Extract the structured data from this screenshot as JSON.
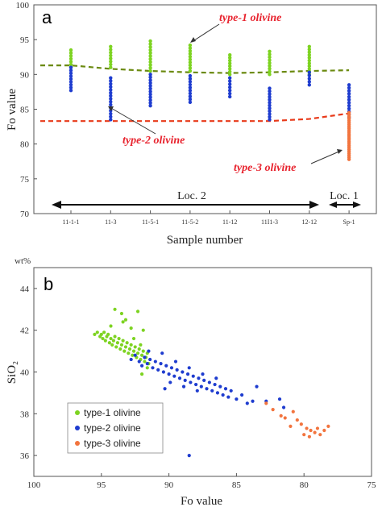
{
  "colors": {
    "type1": "#7dd321",
    "type2": "#1e3ccf",
    "type3": "#f2743e",
    "greenLine": "#6b8a10",
    "redLine": "#e83a1a",
    "annoRed": "#e8232e"
  },
  "chart_data": [
    {
      "type": "scatter",
      "panel_label": "a",
      "xlabel": "Sample number",
      "ylabel": "Fo value",
      "ylim": [
        70,
        100
      ],
      "yticks": [
        70,
        75,
        80,
        85,
        90,
        95,
        100
      ],
      "categories": [
        "11-1-1",
        "11-3",
        "11-5-1",
        "11-5-2",
        "11-12",
        "11I1-3",
        "12-12",
        "Sp-1"
      ],
      "series": [
        {
          "name": "type-1 olivine",
          "ranges": [
            [
              91.0,
              93.5
            ],
            [
              91.0,
              94.0
            ],
            [
              90.5,
              94.8
            ],
            [
              90.5,
              94.2
            ],
            [
              90.0,
              92.8
            ],
            [
              90.0,
              93.3
            ],
            [
              90.0,
              94.0
            ],
            []
          ]
        },
        {
          "name": "type-2 olivine",
          "ranges": [
            [
              87.7,
              91.0
            ],
            [
              83.5,
              89.5
            ],
            [
              85.5,
              90.0
            ],
            [
              86.0,
              89.8
            ],
            [
              86.8,
              89.5
            ],
            [
              83.5,
              88.0
            ],
            [
              88.5,
              90.3
            ],
            [
              83.8,
              88.5
            ]
          ]
        },
        {
          "name": "type-3 olivine",
          "ranges": [
            [],
            [],
            [],
            [],
            [],
            [],
            [],
            [
              77.8,
              84.5
            ]
          ]
        }
      ],
      "dashed_lines": [
        {
          "name": "type-1 / type-2 boundary",
          "x": [
            0,
            1,
            2,
            3,
            4,
            5,
            6,
            7
          ],
          "y": [
            91.3,
            90.8,
            90.5,
            90.3,
            90.2,
            90.3,
            90.5,
            90.6
          ]
        },
        {
          "name": "type-2 / type-3 boundary",
          "x": [
            0,
            1,
            2,
            3,
            4,
            5,
            6,
            7
          ],
          "y": [
            83.3,
            83.3,
            83.3,
            83.3,
            83.3,
            83.3,
            83.6,
            84.4
          ]
        }
      ],
      "annotations": [
        "type-1 olivine",
        "type-2 olivine",
        "type-3 olivine"
      ],
      "locations": [
        "Loc. 2",
        "Loc. 1"
      ]
    },
    {
      "type": "scatter",
      "panel_label": "b",
      "xlabel": "Fo value",
      "ylabel": "SiO₂",
      "unit_label": "wt%",
      "xlim": [
        100,
        75
      ],
      "ylim": [
        35,
        45
      ],
      "xticks": [
        100,
        95,
        90,
        85,
        80,
        75
      ],
      "yticks": [
        36,
        38,
        40,
        42,
        44
      ],
      "legend_position": "bottom-left",
      "series": [
        {
          "name": "type-1 olivine",
          "points": [
            [
              95.5,
              41.8
            ],
            [
              95.3,
              41.9
            ],
            [
              95.1,
              41.7
            ],
            [
              95.0,
              41.8
            ],
            [
              94.9,
              41.6
            ],
            [
              94.8,
              41.9
            ],
            [
              94.7,
              41.5
            ],
            [
              94.6,
              41.7
            ],
            [
              94.5,
              41.8
            ],
            [
              94.4,
              41.4
            ],
            [
              94.3,
              41.6
            ],
            [
              94.2,
              41.3
            ],
            [
              94.1,
              41.5
            ],
            [
              94.0,
              41.7
            ],
            [
              93.9,
              41.2
            ],
            [
              93.8,
              41.4
            ],
            [
              93.7,
              41.6
            ],
            [
              93.6,
              41.1
            ],
            [
              93.5,
              41.3
            ],
            [
              93.4,
              41.5
            ],
            [
              93.3,
              41.0
            ],
            [
              93.2,
              41.2
            ],
            [
              93.1,
              41.4
            ],
            [
              93.0,
              40.9
            ],
            [
              92.9,
              41.1
            ],
            [
              92.8,
              41.3
            ],
            [
              92.7,
              40.8
            ],
            [
              92.6,
              41.0
            ],
            [
              92.5,
              41.2
            ],
            [
              92.4,
              40.7
            ],
            [
              92.3,
              40.9
            ],
            [
              92.2,
              41.1
            ],
            [
              92.1,
              40.6
            ],
            [
              92.0,
              40.8
            ],
            [
              91.9,
              41.0
            ],
            [
              91.8,
              40.5
            ],
            [
              91.7,
              40.7
            ],
            [
              91.6,
              40.9
            ],
            [
              91.5,
              40.4
            ],
            [
              94.0,
              43.0
            ],
            [
              93.5,
              42.8
            ],
            [
              93.2,
              42.5
            ],
            [
              94.3,
              42.2
            ],
            [
              92.8,
              42.1
            ],
            [
              92.3,
              42.9
            ],
            [
              91.9,
              42.0
            ],
            [
              92.6,
              41.6
            ],
            [
              93.4,
              42.4
            ],
            [
              92.1,
              41.3
            ],
            [
              91.6,
              40.2
            ],
            [
              92.0,
              39.9
            ]
          ]
        },
        {
          "name": "type-2 olivine",
          "points": [
            [
              92.8,
              40.6
            ],
            [
              92.5,
              40.8
            ],
            [
              92.2,
              40.5
            ],
            [
              92.0,
              40.3
            ],
            [
              91.8,
              40.7
            ],
            [
              91.6,
              40.4
            ],
            [
              91.4,
              40.6
            ],
            [
              91.2,
              40.2
            ],
            [
              91.0,
              40.5
            ],
            [
              90.8,
              40.1
            ],
            [
              90.6,
              40.4
            ],
            [
              90.4,
              40.0
            ],
            [
              90.2,
              40.3
            ],
            [
              90.0,
              39.9
            ],
            [
              89.8,
              40.2
            ],
            [
              89.6,
              39.8
            ],
            [
              89.4,
              40.1
            ],
            [
              89.2,
              39.7
            ],
            [
              89.0,
              40.0
            ],
            [
              88.8,
              39.6
            ],
            [
              88.6,
              39.9
            ],
            [
              88.4,
              39.5
            ],
            [
              88.2,
              39.8
            ],
            [
              88.0,
              39.4
            ],
            [
              87.8,
              39.7
            ],
            [
              87.6,
              39.3
            ],
            [
              87.4,
              39.6
            ],
            [
              87.2,
              39.2
            ],
            [
              87.0,
              39.5
            ],
            [
              86.8,
              39.1
            ],
            [
              86.6,
              39.4
            ],
            [
              86.4,
              39.0
            ],
            [
              86.2,
              39.3
            ],
            [
              86.0,
              38.9
            ],
            [
              85.8,
              39.2
            ],
            [
              85.6,
              38.8
            ],
            [
              85.4,
              39.1
            ],
            [
              85.0,
              38.7
            ],
            [
              84.6,
              38.9
            ],
            [
              84.2,
              38.5
            ],
            [
              83.8,
              38.6
            ],
            [
              83.5,
              39.3
            ],
            [
              82.8,
              38.6
            ],
            [
              81.8,
              38.7
            ],
            [
              81.5,
              38.3
            ],
            [
              90.5,
              40.9
            ],
            [
              89.5,
              40.5
            ],
            [
              88.5,
              40.2
            ],
            [
              87.5,
              39.9
            ],
            [
              86.5,
              39.7
            ],
            [
              91.5,
              41.0
            ],
            [
              89.9,
              39.5
            ],
            [
              88.9,
              39.3
            ],
            [
              87.9,
              39.1
            ],
            [
              88.5,
              36.0
            ],
            [
              90.3,
              39.2
            ]
          ]
        },
        {
          "name": "type-3 olivine",
          "points": [
            [
              82.8,
              38.5
            ],
            [
              82.3,
              38.2
            ],
            [
              81.7,
              37.9
            ],
            [
              81.4,
              37.8
            ],
            [
              80.8,
              38.1
            ],
            [
              80.5,
              37.7
            ],
            [
              80.2,
              37.5
            ],
            [
              79.8,
              37.3
            ],
            [
              79.5,
              37.2
            ],
            [
              79.2,
              37.1
            ],
            [
              79.0,
              37.3
            ],
            [
              78.8,
              37.0
            ],
            [
              78.5,
              37.2
            ],
            [
              78.2,
              37.4
            ],
            [
              79.6,
              36.9
            ],
            [
              80.0,
              37.0
            ],
            [
              81.0,
              37.4
            ]
          ]
        }
      ]
    }
  ]
}
